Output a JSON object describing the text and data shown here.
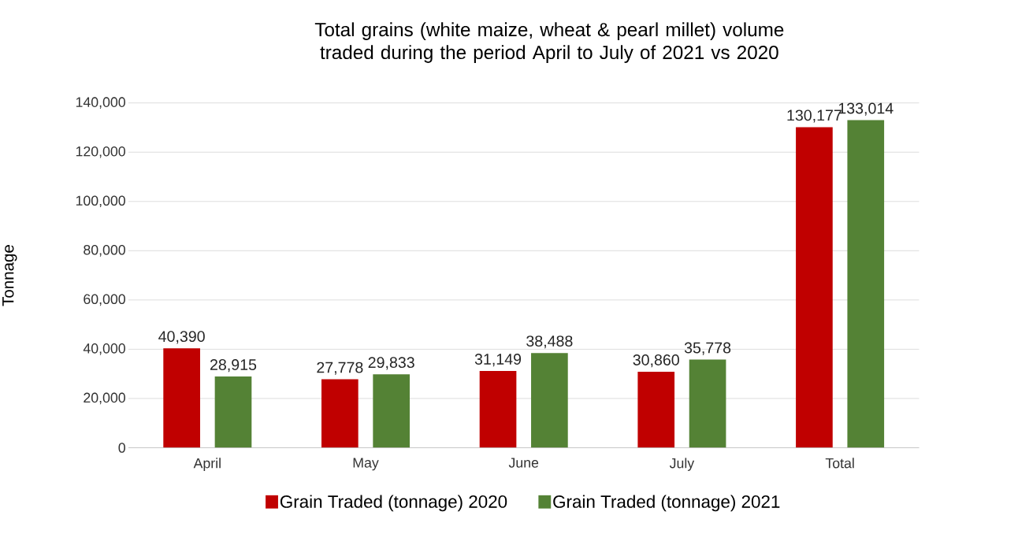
{
  "chart_data": {
    "type": "bar",
    "title": "Total grains (white maize, wheat & pearl millet) volume traded during the period April to July of 2021 vs 2020",
    "ylabel": "Tonnage",
    "categories": [
      "April",
      "May",
      "June",
      "July",
      "Total"
    ],
    "series": [
      {
        "name": "Grain Traded (tonnage) 2020",
        "color": "#c00000",
        "values": [
          40390,
          27778,
          31149,
          30860,
          130177
        ],
        "value_labels": [
          "40,390",
          "27,778",
          "31,149",
          "30,860",
          "130,177"
        ]
      },
      {
        "name": "Grain Traded (tonnage) 2021",
        "color": "#548235",
        "values": [
          28915,
          29833,
          38488,
          35778,
          133014
        ],
        "value_labels": [
          "28,915",
          "29,833",
          "38,488",
          "35,778",
          "133,014"
        ]
      }
    ],
    "ylim": [
      0,
      140000
    ],
    "yticks": [
      {
        "value": 0,
        "label": "0"
      },
      {
        "value": 20000,
        "label": "20,000"
      },
      {
        "value": 40000,
        "label": "40,000"
      },
      {
        "value": 60000,
        "label": "60,000"
      },
      {
        "value": 80000,
        "label": "80,000"
      },
      {
        "value": 100000,
        "label": "100,000"
      },
      {
        "value": 120000,
        "label": "120,000"
      },
      {
        "value": 140000,
        "label": "140,000"
      }
    ],
    "grid": "y",
    "legend": "bottom"
  }
}
